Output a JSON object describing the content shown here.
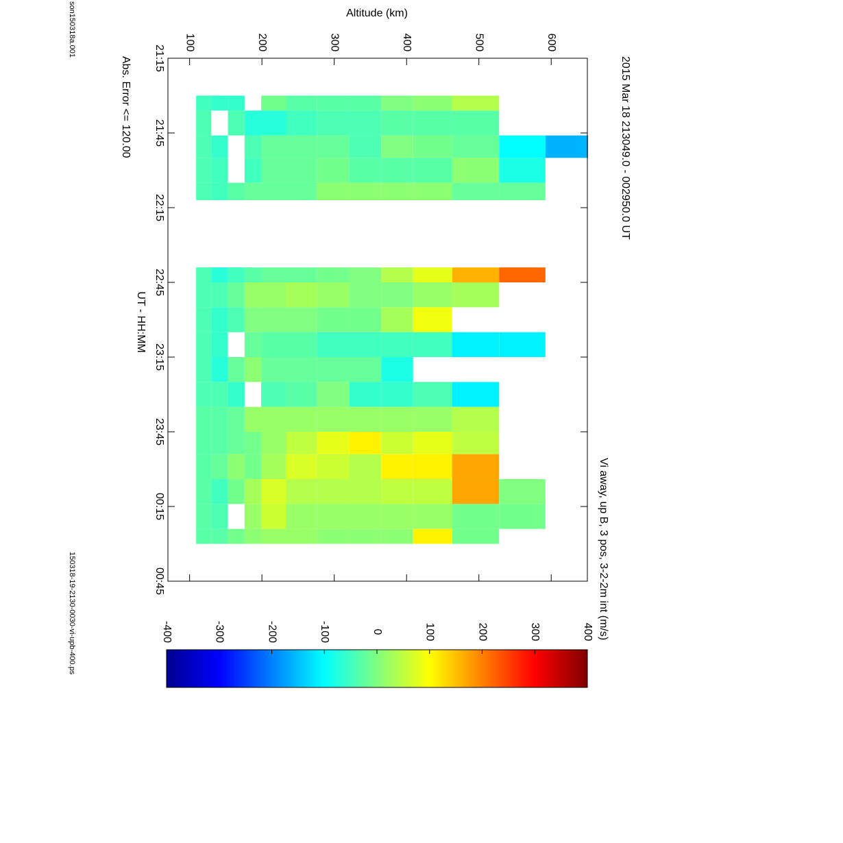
{
  "chart_data": {
    "type": "heatmap",
    "title": "2015 Mar 18    213049.0 - 002950.0 UT",
    "colorbar_label": "Vi away, up B, 3 pos, 3-2-2m int (m/s)",
    "xlabel": "UT - HH:MM",
    "ylabel": "Altitude (km)",
    "annotation": "Abs. Error <= 120.00",
    "file_left": "son150318a.001",
    "file_right": "150318-19-2130-0030-vi-upb-400.ps",
    "xlim": [
      1275,
      1485
    ],
    "xticks": [
      {
        "value": 1275,
        "label": "21:15"
      },
      {
        "value": 1305,
        "label": "21:45"
      },
      {
        "value": 1335,
        "label": "22:15"
      },
      {
        "value": 1365,
        "label": "22:45"
      },
      {
        "value": 1395,
        "label": "23:15"
      },
      {
        "value": 1425,
        "label": "23:45"
      },
      {
        "value": 1455,
        "label": "00:15"
      },
      {
        "value": 1485,
        "label": "00:45"
      }
    ],
    "ylim": [
      70,
      650
    ],
    "yticks": [
      100,
      200,
      300,
      400,
      500,
      600
    ],
    "clim": [
      -400,
      400
    ],
    "cticks": [
      -400,
      -300,
      -200,
      -100,
      0,
      100,
      200,
      300,
      400
    ],
    "colormap": "jet",
    "x_edges": [
      1290,
      1296,
      1306,
      1315,
      1325,
      1332,
      1359,
      1365,
      1375,
      1385,
      1395,
      1405,
      1415,
      1425,
      1434,
      1444,
      1454,
      1464,
      1470
    ],
    "y_edges": [
      109,
      130,
      153,
      176,
      199,
      233,
      276,
      321,
      365,
      409,
      463,
      528,
      592,
      651
    ],
    "values": [
      [
        -50,
        -60,
        -60,
        null,
        -10,
        -30,
        -30,
        -30,
        0,
        10,
        40,
        null,
        null
      ],
      [
        -40,
        null,
        -40,
        -70,
        -70,
        -50,
        -40,
        -40,
        -30,
        -30,
        -30,
        null,
        null
      ],
      [
        -40,
        -60,
        null,
        -40,
        -20,
        -20,
        -20,
        -40,
        0,
        -10,
        -20,
        -100,
        -160
      ],
      [
        -40,
        -50,
        null,
        -50,
        -20,
        -20,
        -10,
        -30,
        -30,
        -30,
        10,
        -80,
        null
      ],
      [
        -40,
        -50,
        -30,
        -20,
        -20,
        -20,
        10,
        10,
        10,
        10,
        -20,
        -20,
        null
      ],
      [
        null,
        null,
        null,
        null,
        null,
        null,
        null,
        null,
        null,
        null,
        null,
        null,
        null
      ],
      [
        -40,
        -70,
        -50,
        -30,
        -20,
        -20,
        -10,
        0,
        40,
        80,
        160,
        220,
        null
      ],
      [
        -40,
        -40,
        -20,
        20,
        20,
        30,
        20,
        0,
        0,
        20,
        30,
        null,
        null
      ],
      [
        -40,
        -60,
        -40,
        0,
        0,
        0,
        -10,
        -10,
        30,
        90,
        null,
        null,
        null
      ],
      [
        -40,
        -60,
        null,
        -20,
        -30,
        -30,
        -50,
        -50,
        -50,
        -50,
        -110,
        -110,
        null
      ],
      [
        -40,
        -70,
        -20,
        10,
        -20,
        -20,
        -20,
        -20,
        -80,
        null,
        null,
        null,
        null
      ],
      [
        -40,
        -40,
        -60,
        null,
        -40,
        -30,
        0,
        -60,
        -60,
        -40,
        -110,
        null,
        null
      ],
      [
        -30,
        -30,
        -20,
        20,
        20,
        20,
        20,
        20,
        20,
        20,
        40,
        null,
        null
      ],
      [
        -30,
        -30,
        -20,
        -10,
        20,
        50,
        80,
        110,
        60,
        80,
        50,
        null,
        null
      ],
      [
        -30,
        -20,
        10,
        -10,
        30,
        70,
        60,
        40,
        110,
        110,
        170,
        null,
        null
      ],
      [
        -30,
        -50,
        -10,
        30,
        70,
        40,
        40,
        40,
        50,
        50,
        170,
        0,
        null
      ],
      [
        -30,
        -40,
        null,
        20,
        60,
        20,
        20,
        20,
        20,
        20,
        -10,
        -10,
        null
      ],
      [
        -30,
        -30,
        -10,
        10,
        20,
        20,
        10,
        10,
        10,
        110,
        -10,
        null,
        null
      ]
    ]
  }
}
